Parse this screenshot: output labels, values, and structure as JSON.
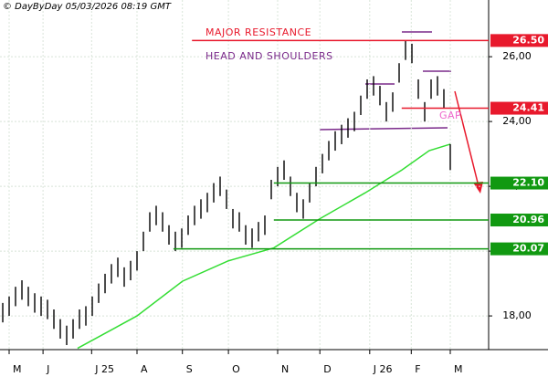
{
  "header": "© DayByDay 05/03/2026  08:19 GMT",
  "chart_data": {
    "type": "ohlc",
    "x": [
      0,
      1,
      2,
      3,
      4,
      5,
      6,
      7,
      8,
      9,
      10,
      11,
      12,
      13,
      14,
      15,
      16,
      17,
      18,
      19,
      20,
      21,
      22,
      23,
      24,
      25,
      26,
      27,
      28,
      29,
      30,
      31,
      32,
      33,
      34,
      35,
      36,
      37,
      38,
      39,
      40,
      41,
      42,
      43,
      44,
      45,
      46,
      47,
      48,
      49,
      50,
      51,
      52,
      53,
      54,
      55,
      56,
      57,
      58,
      59,
      60,
      61,
      62,
      63,
      64,
      65,
      66,
      67,
      68,
      69,
      70
    ],
    "high": [
      18.4,
      18.6,
      18.9,
      19.1,
      18.9,
      18.7,
      18.6,
      18.5,
      18.2,
      17.9,
      17.7,
      17.9,
      18.2,
      18.3,
      18.6,
      19.0,
      19.3,
      19.6,
      19.8,
      19.5,
      19.7,
      20.0,
      20.6,
      21.2,
      21.4,
      21.2,
      20.8,
      20.6,
      20.7,
      21.1,
      21.4,
      21.6,
      21.8,
      22.1,
      22.3,
      21.9,
      21.3,
      21.2,
      20.8,
      20.7,
      20.9,
      21.1,
      22.2,
      22.6,
      22.8,
      22.3,
      21.8,
      21.6,
      22.1,
      22.6,
      23.0,
      23.4,
      23.7,
      23.9,
      24.1,
      24.3,
      24.8,
      25.3,
      25.4,
      25.1,
      24.6,
      24.9,
      25.8,
      26.5,
      26.4,
      25.3,
      24.6,
      25.3,
      25.4,
      25.0,
      23.3
    ],
    "low": [
      17.8,
      18.0,
      18.3,
      18.5,
      18.3,
      18.1,
      18.0,
      17.9,
      17.6,
      17.3,
      17.1,
      17.3,
      17.6,
      17.7,
      18.0,
      18.4,
      18.7,
      19.0,
      19.2,
      18.9,
      19.1,
      19.4,
      20.0,
      20.6,
      20.8,
      20.6,
      20.2,
      20.0,
      20.1,
      20.5,
      20.8,
      21.0,
      21.2,
      21.5,
      21.7,
      21.3,
      20.7,
      20.6,
      20.2,
      20.1,
      20.3,
      20.5,
      21.6,
      22.0,
      22.2,
      21.7,
      21.2,
      21.0,
      21.5,
      22.0,
      22.4,
      22.8,
      23.1,
      23.3,
      23.5,
      23.7,
      24.2,
      24.7,
      24.8,
      24.5,
      24.0,
      24.3,
      25.2,
      25.9,
      25.8,
      24.7,
      24.0,
      24.7,
      24.8,
      24.4,
      22.5
    ],
    "average": {
      "color": "#33dd33",
      "x": [
        11.7,
        21,
        28.1,
        35.3,
        42.4,
        49.6,
        56.7,
        62.4,
        66.7,
        70
      ],
      "values": [
        17.0,
        18.0,
        19.07,
        19.7,
        20.1,
        21.0,
        21.8,
        22.5,
        23.1,
        23.3
      ]
    },
    "levels": [
      {
        "value": 26.5,
        "label": "26.50",
        "color": "#e8192c",
        "from": 29.6
      },
      {
        "value": 24.41,
        "label": "24.41",
        "color": "#e8192c",
        "from": 62.4
      },
      {
        "value": 22.1,
        "label": "22.10",
        "color": "#119911",
        "from": 42.4
      },
      {
        "value": 20.96,
        "label": "20.96",
        "color": "#119911",
        "from": 42.4
      },
      {
        "value": 20.07,
        "label": "20.07",
        "color": "#119911",
        "from": 26.7
      }
    ],
    "annotations": [
      {
        "text": "MAJOR RESISTANCE",
        "color": "#e8192c"
      },
      {
        "text": "HEAD AND SHOULDERS",
        "color": "#7a2a8a"
      },
      {
        "text": "GAP",
        "color": "#ee66cc"
      }
    ],
    "xlim": [
      -0.43,
      76
    ],
    "ylim": [
      16.96,
      27.75
    ],
    "yticks": [
      {
        "value": 18,
        "label": "18,00"
      },
      {
        "value": 20,
        "label": "20,00"
      },
      {
        "value": 22,
        "label": "22,00"
      },
      {
        "value": 24,
        "label": "24,00"
      },
      {
        "value": 26,
        "label": "26,00"
      }
    ],
    "xticks": [
      {
        "value": 1,
        "label": "M"
      },
      {
        "value": 6.3,
        "label": "J"
      },
      {
        "value": 13.9,
        "label": "J 25"
      },
      {
        "value": 21,
        "label": "A"
      },
      {
        "value": 28.1,
        "label": "S"
      },
      {
        "value": 35.3,
        "label": "O"
      },
      {
        "value": 43,
        "label": "N"
      },
      {
        "value": 49.6,
        "label": "D"
      },
      {
        "value": 57.4,
        "label": "J 26"
      },
      {
        "value": 63.9,
        "label": "F"
      },
      {
        "value": 70,
        "label": "M"
      }
    ],
    "grid": true
  }
}
